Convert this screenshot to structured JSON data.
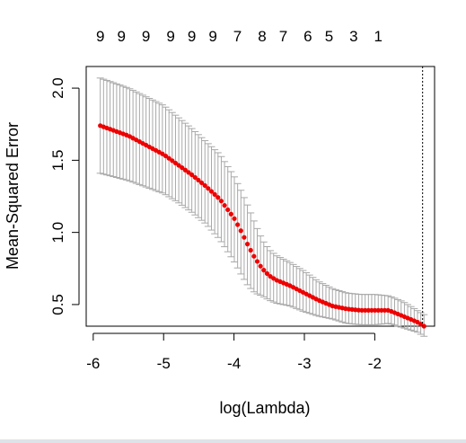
{
  "chart_data": {
    "type": "scatter",
    "title": "",
    "xlabel": "log(Lambda)",
    "ylabel": "Mean-Squared Error",
    "xlim": [
      -6.1,
      -1.15
    ],
    "ylim": [
      0.35,
      2.15
    ],
    "x_ticks": [
      -6,
      -5,
      -4,
      -3,
      -2
    ],
    "x_tick_labels": [
      "-6",
      "-5",
      "-4",
      "-3",
      "-2"
    ],
    "y_ticks": [
      0.5,
      1.0,
      1.5,
      2.0
    ],
    "y_tick_labels": [
      "0.5",
      "1.0",
      "1.5",
      "2.0"
    ],
    "top_axis": {
      "x": [
        -5.9,
        -5.6,
        -5.25,
        -4.9,
        -4.6,
        -4.3,
        -3.95,
        -3.6,
        -3.3,
        -2.95,
        -2.65,
        -2.3,
        -1.95
      ],
      "labels": [
        "9",
        "9",
        "9",
        "9",
        "9",
        "9",
        "7",
        "8",
        "7",
        "6",
        "5",
        "3",
        "1"
      ]
    },
    "reference_line": {
      "x": -1.32,
      "style": "dotted"
    },
    "series": [
      {
        "marker": "red points with grey error bars",
        "curve": {
          "x": [
            -5.9,
            -5.5,
            -5.0,
            -4.8,
            -4.6,
            -4.4,
            -4.2,
            -4.0,
            -3.9,
            -3.8,
            -3.7,
            -3.6,
            -3.5,
            -3.4,
            -3.2,
            -3.0,
            -2.8,
            -2.6,
            -2.4,
            -2.2,
            -2.0,
            -1.8,
            -1.6,
            -1.4,
            -1.3
          ],
          "y": [
            1.74,
            1.67,
            1.54,
            1.47,
            1.4,
            1.32,
            1.23,
            1.1,
            1.01,
            0.91,
            0.82,
            0.75,
            0.7,
            0.67,
            0.63,
            0.58,
            0.53,
            0.49,
            0.47,
            0.46,
            0.46,
            0.46,
            0.42,
            0.38,
            0.35
          ],
          "upper": [
            2.07,
            2.0,
            1.88,
            1.8,
            1.72,
            1.63,
            1.54,
            1.39,
            1.29,
            1.18,
            1.06,
            0.95,
            0.88,
            0.84,
            0.79,
            0.73,
            0.66,
            0.61,
            0.58,
            0.57,
            0.57,
            0.56,
            0.52,
            0.46,
            0.43
          ],
          "lower": [
            1.41,
            1.36,
            1.27,
            1.21,
            1.14,
            1.06,
            0.95,
            0.8,
            0.71,
            0.63,
            0.58,
            0.56,
            0.53,
            0.51,
            0.49,
            0.45,
            0.42,
            0.4,
            0.37,
            0.36,
            0.36,
            0.37,
            0.34,
            0.31,
            0.28
          ]
        }
      }
    ],
    "grid": false,
    "legend": "none",
    "colors": {
      "points": "#ee0000",
      "error_bars": "#a8a8a8",
      "axes": "#000000"
    }
  }
}
